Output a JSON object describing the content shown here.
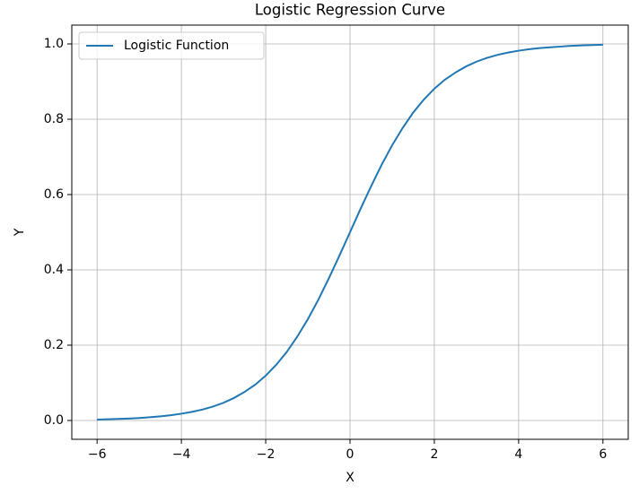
{
  "chart_data": {
    "type": "line",
    "title": "Logistic Regression Curve",
    "x_label": "X",
    "y_label": "Y",
    "x": [
      -6,
      -5.75,
      -5.5,
      -5.25,
      -5,
      -4.75,
      -4.5,
      -4.25,
      -4,
      -3.75,
      -3.5,
      -3.25,
      -3,
      -2.75,
      -2.5,
      -2.25,
      -2,
      -1.75,
      -1.5,
      -1.25,
      -1,
      -0.75,
      -0.5,
      -0.25,
      0,
      0.25,
      0.5,
      0.75,
      1,
      1.25,
      1.5,
      1.75,
      2,
      2.25,
      2.5,
      2.75,
      3,
      3.25,
      3.5,
      3.75,
      4,
      4.25,
      4.5,
      4.75,
      5,
      5.25,
      5.5,
      5.75,
      6
    ],
    "series": [
      {
        "name": "Logistic Function",
        "color": "#1f77b4",
        "values": [
          0.0025,
          0.0032,
          0.0041,
          0.0052,
          0.0067,
          0.0086,
          0.011,
          0.014,
          0.018,
          0.023,
          0.029,
          0.037,
          0.047,
          0.06,
          0.076,
          0.095,
          0.119,
          0.148,
          0.182,
          0.223,
          0.269,
          0.321,
          0.378,
          0.438,
          0.5,
          0.562,
          0.622,
          0.679,
          0.731,
          0.777,
          0.818,
          0.852,
          0.881,
          0.905,
          0.924,
          0.94,
          0.953,
          0.963,
          0.971,
          0.977,
          0.982,
          0.986,
          0.989,
          0.991,
          0.993,
          0.995,
          0.996,
          0.997,
          0.998
        ]
      }
    ],
    "xlim": [
      -6.6,
      6.6
    ],
    "ylim": [
      -0.05,
      1.05
    ],
    "xticks": [
      {
        "value": -6,
        "label": "−6"
      },
      {
        "value": -4,
        "label": "−4"
      },
      {
        "value": -2,
        "label": "−2"
      },
      0,
      2,
      4,
      6
    ],
    "yticks": [
      {
        "value": 0,
        "label": "0.0"
      },
      0.2,
      0.4,
      0.6,
      0.8,
      {
        "value": 1,
        "label": "1.0"
      }
    ],
    "grid": true,
    "legend": "upper left"
  }
}
